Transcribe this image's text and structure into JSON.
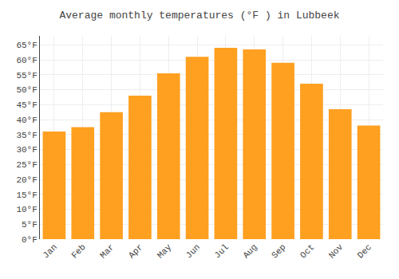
{
  "chart_data": {
    "type": "bar",
    "title": "Average monthly temperatures (°F ) in Lubbeek",
    "categories": [
      "Jan",
      "Feb",
      "Mar",
      "Apr",
      "May",
      "Jun",
      "Jul",
      "Aug",
      "Sep",
      "Oct",
      "Nov",
      "Dec"
    ],
    "values": [
      36,
      37.5,
      42.5,
      48,
      55.5,
      61,
      64,
      63.5,
      59,
      52,
      43.5,
      38
    ],
    "color": "#FFA020",
    "ylim": [
      0,
      68
    ],
    "yticks": [
      {
        "value": 0,
        "label": "0°F"
      },
      {
        "value": 5,
        "label": "5°F"
      },
      {
        "value": 10,
        "label": "10°F"
      },
      {
        "value": 15,
        "label": "15°F"
      },
      {
        "value": 20,
        "label": "20°F"
      },
      {
        "value": 25,
        "label": "25°F"
      },
      {
        "value": 30,
        "label": "30°F"
      },
      {
        "value": 35,
        "label": "35°F"
      },
      {
        "value": 40,
        "label": "40°F"
      },
      {
        "value": 45,
        "label": "45°F"
      },
      {
        "value": 50,
        "label": "50°F"
      },
      {
        "value": 55,
        "label": "55°F"
      },
      {
        "value": 60,
        "label": "60°F"
      },
      {
        "value": 65,
        "label": "65°F"
      }
    ],
    "grid": true
  }
}
